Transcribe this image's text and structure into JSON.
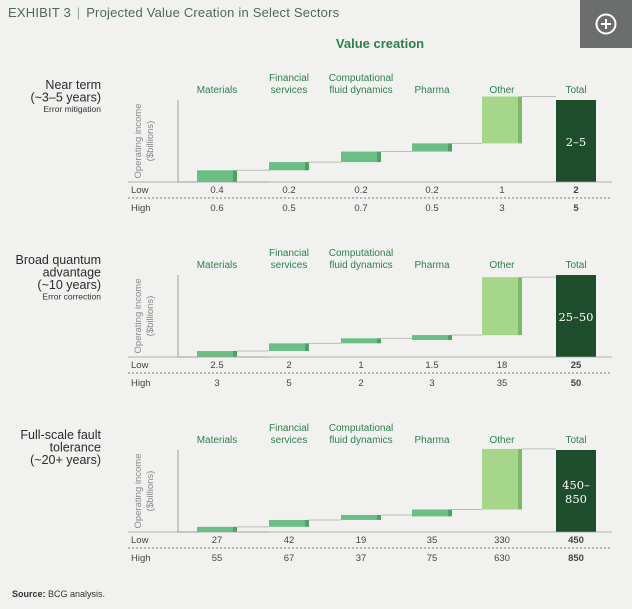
{
  "header": {
    "exhibit_label": "EXHIBIT 3",
    "title": "Projected Value Creation in Select Sectors",
    "expand_icon": "plus-circle-icon"
  },
  "heading": "Value creation",
  "y_axis_label_line1": "Operating income",
  "y_axis_label_line2": "($billions)",
  "row_labels": [
    "Low",
    "High"
  ],
  "source": {
    "label": "Source:",
    "text": "BCG analysis."
  },
  "colors": {
    "bar": "#6cbf84",
    "bar_shade": "#4f9f67",
    "other": "#a5d68a",
    "other_shade": "#7fb866",
    "total": "#1e4d2b",
    "accent": "#2e7f4c"
  },
  "chart_data": [
    {
      "type": "bar",
      "subtype": "waterfall",
      "title_lines": [
        "Near term",
        "(~3–5 years)"
      ],
      "subtitle": "Error mitigation",
      "categories": [
        "Materials",
        "Financial services",
        "Computational fluid dynamics",
        "Pharma",
        "Other",
        "Total"
      ],
      "series": [
        {
          "name": "Low",
          "values": [
            "0.4",
            "0.2",
            "0.2",
            "0.2",
            "1",
            "2"
          ]
        },
        {
          "name": "High",
          "values": [
            "0.6",
            "0.5",
            "0.7",
            "0.5",
            "3",
            "5"
          ]
        }
      ],
      "total_label": "2–5",
      "xlabel": "",
      "ylabel": "Operating income ($billions)"
    },
    {
      "type": "bar",
      "subtype": "waterfall",
      "title_lines": [
        "Broad quantum",
        "advantage",
        "(~10 years)"
      ],
      "subtitle": "Error correction",
      "categories": [
        "Materials",
        "Financial services",
        "Computational fluid dynamics",
        "Pharma",
        "Other",
        "Total"
      ],
      "series": [
        {
          "name": "Low",
          "values": [
            "2.5",
            "2",
            "1",
            "1.5",
            "18",
            "25"
          ]
        },
        {
          "name": "High",
          "values": [
            "3",
            "5",
            "2",
            "3",
            "35",
            "50"
          ]
        }
      ],
      "total_label": "25–50",
      "xlabel": "",
      "ylabel": "Operating income ($billions)"
    },
    {
      "type": "bar",
      "subtype": "waterfall",
      "title_lines": [
        "Full-scale fault",
        "tolerance",
        "(~20+ years)"
      ],
      "subtitle": "",
      "categories": [
        "Materials",
        "Financial services",
        "Computational fluid dynamics",
        "Pharma",
        "Other",
        "Total"
      ],
      "series": [
        {
          "name": "Low",
          "values": [
            "27",
            "42",
            "19",
            "35",
            "330",
            "450"
          ]
        },
        {
          "name": "High",
          "values": [
            "55",
            "67",
            "37",
            "75",
            "630",
            "850"
          ]
        }
      ],
      "total_label": "450–850",
      "xlabel": "",
      "ylabel": "Operating income ($billions)"
    }
  ]
}
